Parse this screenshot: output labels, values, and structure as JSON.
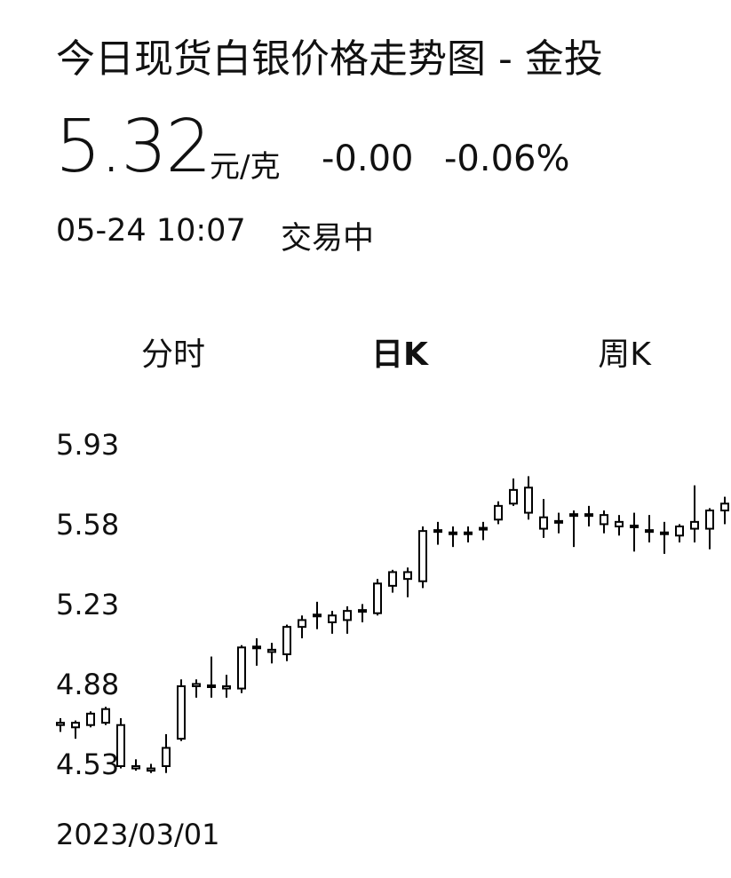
{
  "header": {
    "title": "今日现货白银价格走势图 - 金投",
    "price": "5.32",
    "unit": "元/克",
    "change": "-0.00",
    "change_pct": "-0.06%",
    "time": "05-24 10:07",
    "status": "交易中"
  },
  "tabs": {
    "items": [
      "分时",
      "日K",
      "周K"
    ],
    "active": 1
  },
  "chart_data": {
    "type": "candlestick",
    "color": "#000000",
    "categories": [
      "2023/03/01",
      null,
      null,
      null,
      null,
      null,
      null,
      null,
      null,
      null,
      null,
      null,
      null,
      null,
      null,
      null,
      null,
      null,
      null,
      null,
      null,
      null,
      null,
      null,
      null,
      null,
      null,
      null,
      null,
      null,
      null,
      null,
      null,
      null,
      null,
      null,
      null,
      null,
      null,
      null,
      null,
      null,
      null,
      null,
      null
    ],
    "open": [
      4.71,
      4.7,
      4.71,
      4.72,
      4.71,
      4.52,
      4.52,
      4.53,
      4.65,
      4.88,
      4.88,
      4.88,
      4.87,
      5.05,
      5.04,
      5.02,
      5.14,
      5.19,
      5.16,
      5.17,
      5.21,
      5.2,
      5.32,
      5.35,
      5.34,
      5.56,
      5.55,
      5.55,
      5.57,
      5.61,
      5.68,
      5.75,
      5.62,
      5.6,
      5.63,
      5.63,
      5.59,
      5.58,
      5.58,
      5.56,
      5.55,
      5.54,
      5.57,
      5.57,
      5.65
    ],
    "high": [
      4.74,
      4.73,
      4.77,
      4.79,
      4.74,
      4.56,
      4.54,
      4.67,
      4.91,
      4.91,
      5.01,
      4.93,
      5.06,
      5.09,
      5.07,
      5.15,
      5.19,
      5.25,
      5.21,
      5.23,
      5.24,
      5.35,
      5.39,
      5.4,
      5.58,
      5.6,
      5.58,
      5.58,
      5.6,
      5.69,
      5.79,
      5.8,
      5.7,
      5.64,
      5.65,
      5.67,
      5.65,
      5.63,
      5.64,
      5.63,
      5.6,
      5.59,
      5.76,
      5.66,
      5.71
    ],
    "low": [
      4.68,
      4.65,
      4.7,
      4.71,
      4.52,
      4.51,
      4.5,
      4.5,
      4.64,
      4.83,
      4.83,
      4.83,
      4.85,
      4.97,
      4.98,
      4.99,
      5.09,
      5.13,
      5.11,
      5.11,
      5.16,
      5.19,
      5.29,
      5.27,
      5.31,
      5.5,
      5.49,
      5.51,
      5.52,
      5.59,
      5.67,
      5.61,
      5.53,
      5.55,
      5.49,
      5.58,
      5.55,
      5.54,
      5.47,
      5.51,
      5.46,
      5.51,
      5.51,
      5.48,
      5.59
    ],
    "close": [
      4.72,
      4.72,
      4.76,
      4.78,
      4.53,
      4.53,
      4.51,
      4.61,
      4.88,
      4.89,
      4.88,
      4.87,
      5.05,
      5.05,
      5.03,
      5.14,
      5.17,
      5.19,
      5.19,
      5.21,
      5.21,
      5.33,
      5.38,
      5.38,
      5.56,
      5.56,
      5.55,
      5.55,
      5.57,
      5.67,
      5.74,
      5.64,
      5.57,
      5.6,
      5.63,
      5.63,
      5.63,
      5.6,
      5.58,
      5.56,
      5.55,
      5.58,
      5.6,
      5.65,
      5.68
    ],
    "ylim": [
      4.53,
      5.93
    ],
    "yticks": [
      4.53,
      4.88,
      5.23,
      5.58,
      5.93
    ]
  }
}
